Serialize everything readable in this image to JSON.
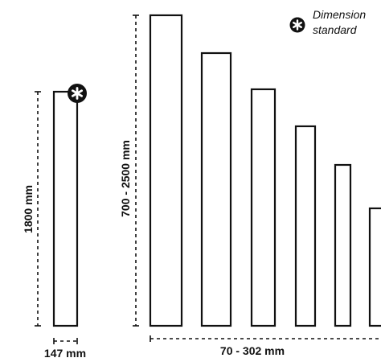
{
  "single_panel": {
    "height_label": "1800 mm",
    "width_label": "147 mm",
    "badge_icon": "asterisk-badge-icon"
  },
  "panel_range": {
    "height_label": "700 - 2500 mm",
    "width_label": "70 - 302 mm",
    "panel_count": 6
  },
  "legend": {
    "icon": "asterisk-badge-icon",
    "line1": "Dimension",
    "line2": "standard"
  },
  "colors": {
    "stroke": "#111111",
    "background": "#ffffff"
  }
}
